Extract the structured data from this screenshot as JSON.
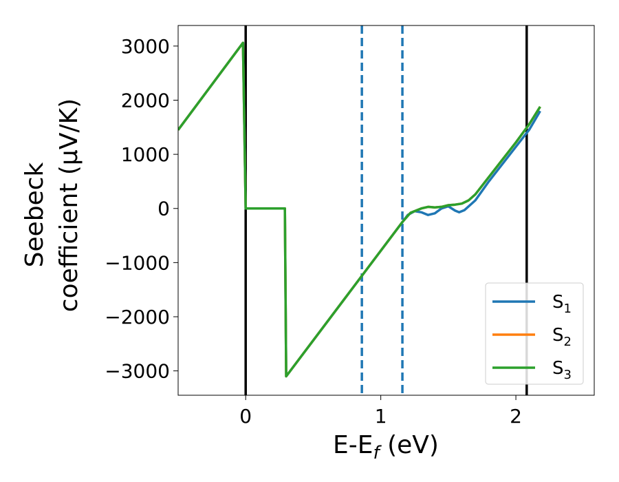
{
  "chart_data": {
    "type": "line",
    "xlabel": {
      "main": "E-E",
      "sub": "f",
      "unit": " (eV)"
    },
    "ylabel": {
      "line1": "Seebeck",
      "line2": "coefficient  (μV/K)"
    },
    "xlim": [
      -0.5,
      2.58
    ],
    "ylim": [
      -3450,
      3380
    ],
    "xticks": [
      0,
      1,
      2
    ],
    "yticks": [
      -3000,
      -2000,
      -1000,
      0,
      1000,
      2000,
      3000
    ],
    "xtick_labels": [
      "0",
      "1",
      "2"
    ],
    "ytick_labels": [
      "−3000",
      "−2000",
      "−1000",
      "0",
      "1000",
      "2000",
      "3000"
    ],
    "grid": false,
    "legend_position": "lower-right",
    "vlines": [
      {
        "x": 0.0,
        "style": "solid",
        "color": "#000000"
      },
      {
        "x": 2.08,
        "style": "solid",
        "color": "#000000"
      },
      {
        "x": 0.86,
        "style": "dashed",
        "color": "#1f77b4"
      },
      {
        "x": 1.16,
        "style": "dashed",
        "color": "#1f77b4"
      }
    ],
    "series": [
      {
        "name": "S",
        "sub": "1",
        "color": "#1f77b4",
        "points": [
          [
            -0.5,
            1450
          ],
          [
            -0.02,
            3060
          ],
          [
            0.0,
            0
          ],
          [
            0.29,
            0
          ],
          [
            0.3,
            -3100
          ],
          [
            1.16,
            -250
          ],
          [
            1.2,
            -120
          ],
          [
            1.25,
            -50
          ],
          [
            1.3,
            -70
          ],
          [
            1.35,
            -120
          ],
          [
            1.4,
            -90
          ],
          [
            1.45,
            0
          ],
          [
            1.5,
            40
          ],
          [
            1.55,
            -40
          ],
          [
            1.58,
            -70
          ],
          [
            1.62,
            -30
          ],
          [
            1.7,
            150
          ],
          [
            1.8,
            500
          ],
          [
            1.9,
            820
          ],
          [
            2.0,
            1140
          ],
          [
            2.1,
            1460
          ],
          [
            2.18,
            1800
          ]
        ]
      },
      {
        "name": "S",
        "sub": "2",
        "color": "#ff7f0e",
        "points": [
          [
            -0.5,
            1450
          ],
          [
            -0.02,
            3060
          ],
          [
            0.0,
            0
          ],
          [
            0.29,
            0
          ],
          [
            0.3,
            -3100
          ],
          [
            1.16,
            -250
          ],
          [
            1.22,
            -80
          ],
          [
            1.3,
            0
          ],
          [
            1.35,
            30
          ],
          [
            1.4,
            20
          ],
          [
            1.45,
            30
          ],
          [
            1.5,
            60
          ],
          [
            1.55,
            70
          ],
          [
            1.6,
            90
          ],
          [
            1.65,
            150
          ],
          [
            1.7,
            260
          ],
          [
            1.8,
            580
          ],
          [
            1.9,
            900
          ],
          [
            2.0,
            1220
          ],
          [
            2.1,
            1560
          ],
          [
            2.18,
            1880
          ]
        ]
      },
      {
        "name": "S",
        "sub": "3",
        "color": "#2ca02c",
        "points": [
          [
            -0.5,
            1450
          ],
          [
            -0.02,
            3060
          ],
          [
            0.0,
            0
          ],
          [
            0.29,
            0
          ],
          [
            0.3,
            -3100
          ],
          [
            1.16,
            -250
          ],
          [
            1.22,
            -80
          ],
          [
            1.3,
            0
          ],
          [
            1.35,
            30
          ],
          [
            1.4,
            20
          ],
          [
            1.45,
            30
          ],
          [
            1.5,
            60
          ],
          [
            1.55,
            70
          ],
          [
            1.6,
            90
          ],
          [
            1.65,
            150
          ],
          [
            1.7,
            260
          ],
          [
            1.8,
            580
          ],
          [
            1.9,
            900
          ],
          [
            2.0,
            1220
          ],
          [
            2.1,
            1560
          ],
          [
            2.18,
            1880
          ]
        ]
      }
    ]
  }
}
